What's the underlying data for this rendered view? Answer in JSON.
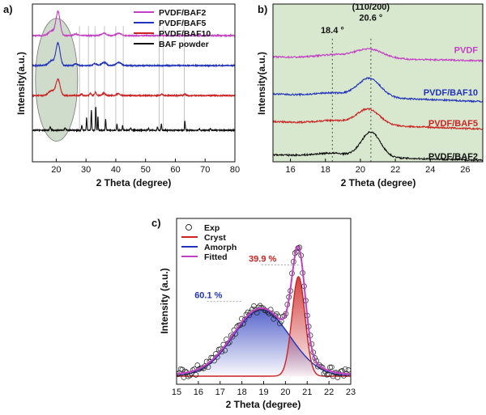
{
  "colors": {
    "magenta": "#c33fc3",
    "blue": "#2233bb",
    "red": "#cc2222",
    "black": "#111111",
    "panel_b_bg": "#d7e8cf",
    "circle_fill": "#cfdccb"
  },
  "chart_data": [
    {
      "id": "a",
      "panel_label": "a)",
      "type": "line",
      "xlabel": "2 Theta (degree)",
      "ylabel": "Intensity(a.u.)",
      "xlim": [
        12,
        80
      ],
      "xticks": [
        "20",
        "30",
        "40",
        "50",
        "60",
        "70",
        "80"
      ],
      "legend_position": "top-right",
      "series": [
        {
          "name": "PVDF/BAF2",
          "color": "#c33fc3",
          "baseline": 0.8,
          "peaks": [
            [
              18.4,
              0.03,
              1.0
            ],
            [
              20.6,
              0.15,
              0.7
            ],
            [
              26.6,
              0.01,
              0.6
            ],
            [
              36.0,
              0.015,
              0.8
            ],
            [
              41.0,
              0.015,
              0.8
            ]
          ]
        },
        {
          "name": "PVDF/BAF5",
          "color": "#2233bb",
          "baseline": 0.61,
          "peaks": [
            [
              18.4,
              0.03,
              1.0
            ],
            [
              20.6,
              0.14,
              0.7
            ],
            [
              26.6,
              0.01,
              0.6
            ],
            [
              33.0,
              0.012,
              0.6
            ],
            [
              36.0,
              0.02,
              0.8
            ],
            [
              41.0,
              0.02,
              0.8
            ]
          ]
        },
        {
          "name": "PVDF/BAF10",
          "color": "#cc2222",
          "baseline": 0.42,
          "peaks": [
            [
              18.4,
              0.03,
              1.0
            ],
            [
              20.6,
              0.1,
              0.7
            ],
            [
              28.5,
              0.01,
              0.3
            ],
            [
              31.5,
              0.015,
              0.3
            ],
            [
              33.2,
              0.02,
              0.3
            ],
            [
              36.0,
              0.015,
              0.5
            ],
            [
              40.8,
              0.012,
              0.5
            ],
            [
              55.5,
              0.01,
              0.3
            ],
            [
              63.2,
              0.01,
              0.3
            ]
          ]
        },
        {
          "name": "BAF powder",
          "color": "#111111",
          "baseline": 0.2,
          "peaks": [
            [
              18.0,
              0.02,
              0.2
            ],
            [
              23.0,
              0.015,
              0.2
            ],
            [
              28.6,
              0.03,
              0.15
            ],
            [
              30.2,
              0.08,
              0.12
            ],
            [
              31.8,
              0.13,
              0.12
            ],
            [
              33.3,
              0.15,
              0.12
            ],
            [
              34.0,
              0.09,
              0.1
            ],
            [
              36.6,
              0.07,
              0.12
            ],
            [
              40.4,
              0.04,
              0.12
            ],
            [
              42.3,
              0.03,
              0.12
            ],
            [
              45.0,
              0.015,
              0.15
            ],
            [
              51.0,
              0.012,
              0.15
            ],
            [
              54.0,
              0.02,
              0.15
            ],
            [
              55.3,
              0.04,
              0.12
            ],
            [
              63.2,
              0.06,
              0.12
            ],
            [
              68.0,
              0.01,
              0.15
            ],
            [
              71.8,
              0.012,
              0.15
            ]
          ]
        }
      ],
      "reference_lines": [
        27.8,
        30.8,
        33.0,
        36.2,
        40.0,
        42.5,
        54.6,
        56.0,
        63.0
      ]
    },
    {
      "id": "b",
      "panel_label": "b)",
      "type": "line",
      "xlabel": "2 Theta (degree)",
      "ylabel": "Intensity(a.u.)",
      "xlim": [
        15,
        27
      ],
      "xticks": [
        "16",
        "18",
        "20",
        "22",
        "24",
        "26"
      ],
      "reference_lines": [
        18.4,
        20.6
      ],
      "annotations": [
        {
          "text": "(110/200)",
          "x": 20.6,
          "y": 0.965
        },
        {
          "text": "20.6 °",
          "x": 20.6,
          "y": 0.895
        },
        {
          "text": "18.4 °",
          "x": 18.4,
          "y": 0.815
        }
      ],
      "series": [
        {
          "name": "PVDF",
          "color": "#c33fc3",
          "baseline": 0.665,
          "slope": -0.002,
          "peaks": [
            [
              18.4,
              0.02,
              0.9
            ],
            [
              20.5,
              0.06,
              0.8
            ]
          ]
        },
        {
          "name": "PVDF/BAF10",
          "color": "#2233bb",
          "baseline": 0.43,
          "slope": -0.004,
          "peaks": [
            [
              18.4,
              0.02,
              0.9
            ],
            [
              20.5,
              0.12,
              0.65
            ]
          ]
        },
        {
          "name": "PVDF/BAF5",
          "color": "#cc2222",
          "baseline": 0.255,
          "slope": -0.004,
          "peaks": [
            [
              18.4,
              0.02,
              0.9
            ],
            [
              20.45,
              0.1,
              0.65
            ]
          ]
        },
        {
          "name": "PVDF/BAF2",
          "color": "#111111",
          "baseline": 0.045,
          "slope": -0.003,
          "peaks": [
            [
              18.4,
              0.02,
              0.9
            ],
            [
              20.6,
              0.16,
              0.55
            ]
          ]
        }
      ]
    },
    {
      "id": "c",
      "panel_label": "c)",
      "type": "scatter",
      "xlabel": "2 Theta (degree)",
      "ylabel": "Intensity (a.u.)",
      "xlim": [
        15,
        23
      ],
      "xticks": [
        "15",
        "16",
        "17",
        "18",
        "19",
        "20",
        "21",
        "22",
        "23"
      ],
      "legend_position": "top-left",
      "legend": [
        "Exp",
        "Cryst",
        "Amorph",
        "Fitted"
      ],
      "crystalline": {
        "name": "Cryst",
        "percent": "39.9 %",
        "center": 20.6,
        "height": 0.6,
        "width": 0.3,
        "color": "#cc2222"
      },
      "amorphous": {
        "name": "Amorph",
        "percent": "60.1 %",
        "center": 18.9,
        "height": 0.4,
        "width": 1.3,
        "color": "#2233bb"
      },
      "fitted": {
        "name": "Fitted",
        "color": "#c33fc3",
        "offset": 0.01
      },
      "experimental": {
        "name": "Exp",
        "step": 0.07,
        "noise": 0.03
      }
    }
  ]
}
